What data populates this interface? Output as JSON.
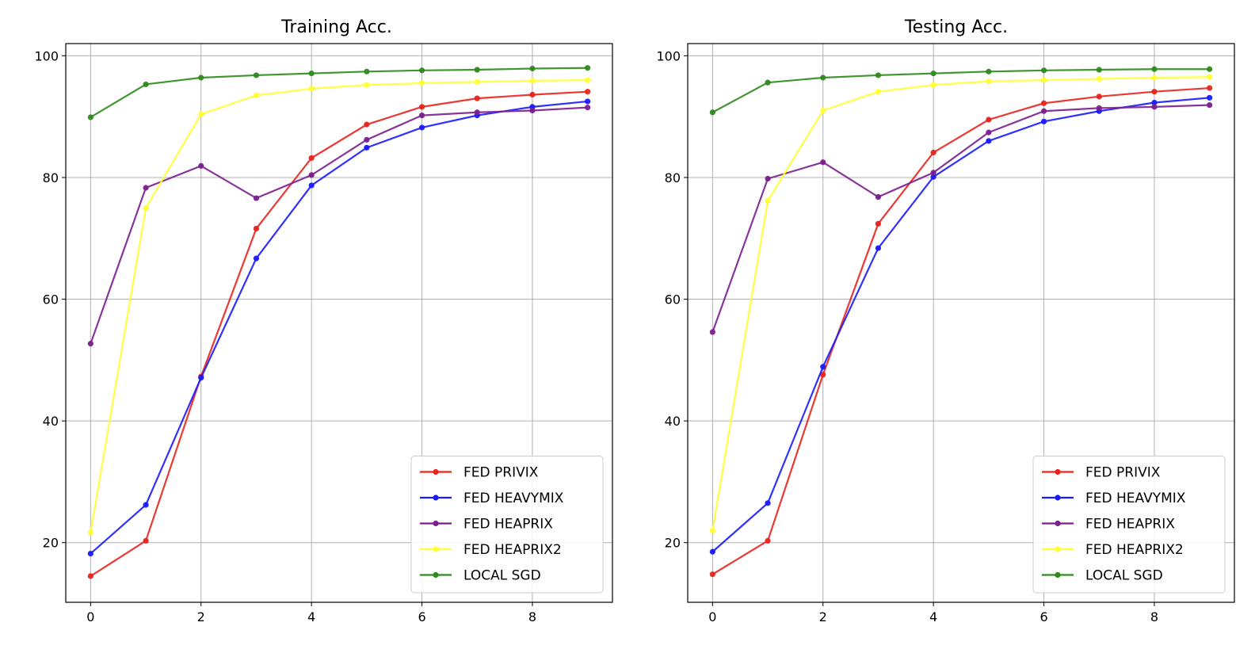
{
  "chart_data": [
    {
      "type": "line",
      "title": "Training Acc.",
      "xlabel": "",
      "ylabel": "",
      "x": [
        0,
        1,
        2,
        3,
        4,
        5,
        6,
        7,
        8,
        9
      ],
      "xlim": [
        -0.45,
        9.45
      ],
      "ylim": [
        10.2,
        102
      ],
      "xticks": [
        0,
        2,
        4,
        6,
        8
      ],
      "yticks": [
        20,
        40,
        60,
        80,
        100
      ],
      "grid": true,
      "legend_position": "lower-right",
      "series": [
        {
          "name": "FED PRIVIX",
          "color": "#e8241c",
          "values": [
            14.5,
            20.3,
            47.3,
            71.6,
            83.2,
            88.7,
            91.6,
            93.0,
            93.6,
            94.1
          ]
        },
        {
          "name": "FED HEAVYMIX",
          "color": "#1a1aff",
          "values": [
            18.2,
            26.2,
            47.1,
            66.7,
            78.7,
            84.9,
            88.2,
            90.2,
            91.6,
            92.5
          ]
        },
        {
          "name": "FED HEAPRIX",
          "color": "#7b1f8e",
          "values": [
            52.7,
            78.3,
            81.9,
            76.6,
            80.4,
            86.2,
            90.2,
            90.7,
            91.0,
            91.5
          ]
        },
        {
          "name": "FED HEAPRIX2",
          "color": "#ffff33",
          "values": [
            21.7,
            75.0,
            90.4,
            93.5,
            94.6,
            95.2,
            95.5,
            95.7,
            95.9,
            96.0
          ]
        },
        {
          "name": "LOCAL SGD",
          "color": "#2f8a1d",
          "values": [
            89.9,
            95.3,
            96.4,
            96.8,
            97.1,
            97.4,
            97.6,
            97.7,
            97.9,
            98.0
          ]
        }
      ]
    },
    {
      "type": "line",
      "title": "Testing Acc.",
      "xlabel": "",
      "ylabel": "",
      "x": [
        0,
        1,
        2,
        3,
        4,
        5,
        6,
        7,
        8,
        9
      ],
      "xlim": [
        -0.45,
        9.45
      ],
      "ylim": [
        10.2,
        102
      ],
      "xticks": [
        0,
        2,
        4,
        6,
        8
      ],
      "yticks": [
        20,
        40,
        60,
        80,
        100
      ],
      "grid": true,
      "legend_position": "lower-right",
      "series": [
        {
          "name": "FED PRIVIX",
          "color": "#e8241c",
          "values": [
            14.8,
            20.3,
            47.6,
            72.4,
            84.1,
            89.5,
            92.2,
            93.3,
            94.1,
            94.7
          ]
        },
        {
          "name": "FED HEAVYMIX",
          "color": "#1a1aff",
          "values": [
            18.5,
            26.5,
            48.9,
            68.4,
            80.1,
            86.0,
            89.2,
            90.9,
            92.3,
            93.1
          ]
        },
        {
          "name": "FED HEAPRIX",
          "color": "#7b1f8e",
          "values": [
            54.6,
            79.8,
            82.5,
            76.8,
            80.8,
            87.4,
            90.9,
            91.4,
            91.6,
            91.9
          ]
        },
        {
          "name": "FED HEAPRIX2",
          "color": "#ffff33",
          "values": [
            22.0,
            76.2,
            91.0,
            94.1,
            95.2,
            95.8,
            96.0,
            96.2,
            96.4,
            96.5
          ]
        },
        {
          "name": "LOCAL SGD",
          "color": "#2f8a1d",
          "values": [
            90.7,
            95.6,
            96.4,
            96.8,
            97.1,
            97.4,
            97.6,
            97.7,
            97.8,
            97.8
          ]
        }
      ]
    }
  ]
}
